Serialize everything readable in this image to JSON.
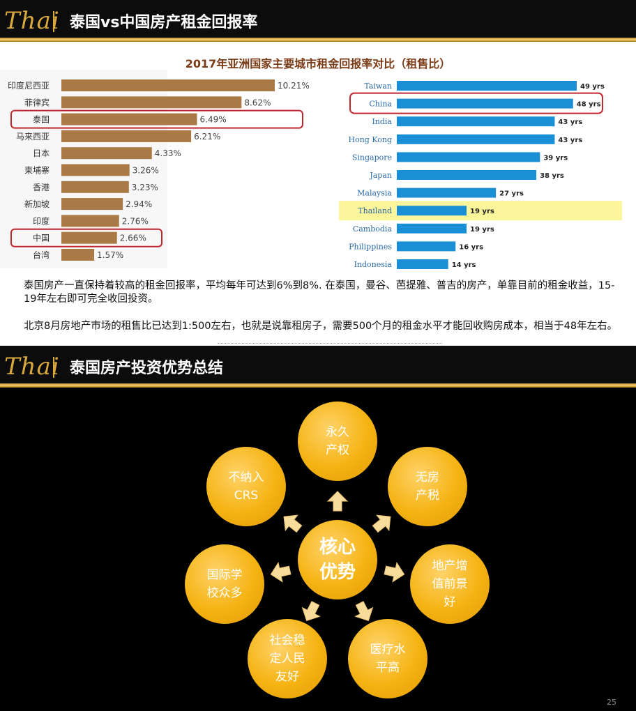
{
  "slide1": {
    "logo": "Thai",
    "header_title": "泰国vs中国房产租金回报率",
    "chart_title": "2017年亚洲国家主要城市租金回报率对比（租售比）",
    "paragraph1": "泰国房产一直保持着较高的租金回报率，平均每年可达到6%到8%. 在泰国，曼谷、芭提雅、普吉的房产，单靠目前的租金收益，15-19年左右即可完全收回投资。",
    "paragraph2": "北京8月房地产市场的租售比已达到1:500左右，也就是说靠租房子，需要500个月的租金水平才能回收购房成本，相当于48年左右。"
  },
  "chart_data": [
    {
      "type": "bar",
      "orientation": "horizontal",
      "categories": [
        "印度尼西亚",
        "菲律宾",
        "泰国",
        "马来西亚",
        "日本",
        "柬埔寨",
        "香港",
        "新加坡",
        "印度",
        "中国",
        "台湾"
      ],
      "values": [
        10.21,
        8.62,
        6.49,
        6.21,
        4.33,
        3.26,
        3.23,
        2.94,
        2.76,
        2.66,
        1.57
      ],
      "value_labels": [
        "10.21%",
        "8.62%",
        "6.49%",
        "6.21%",
        "4.33%",
        "3.26%",
        "3.23%",
        "2.94%",
        "2.76%",
        "2.66%",
        "1.57%"
      ],
      "highlighted": [
        "泰国",
        "中国"
      ],
      "bar_color": "#a97a45",
      "highlight_color": "#c0262d",
      "xlim": [
        0,
        10.21
      ]
    },
    {
      "type": "bar",
      "orientation": "horizontal",
      "categories": [
        "Taiwan",
        "China",
        "India",
        "Hong Kong",
        "Singapore",
        "Japan",
        "Malaysia",
        "Thailand",
        "Cambodia",
        "Philippines",
        "Indonesia"
      ],
      "values": [
        49,
        48,
        43,
        43,
        39,
        38,
        27,
        19,
        19,
        16,
        14
      ],
      "value_labels": [
        "49 yrs",
        "48 yrs",
        "43 yrs",
        "43 yrs",
        "39 yrs",
        "38 yrs",
        "27 yrs",
        "19 yrs",
        "19 yrs",
        "16 yrs",
        "14 yrs"
      ],
      "highlighted_box": [
        "China"
      ],
      "highlighted_fill": [
        "Thailand"
      ],
      "bar_color": "#1a8fd6",
      "label_color": "#2a6aa8",
      "highlight_color": "#c0262d",
      "highlight_fill_color": "#fbf59b",
      "xlim": [
        0,
        49
      ]
    }
  ],
  "slide2": {
    "logo": "Thai",
    "header_title": "泰国房产投资优势总结",
    "core": "核心\n优势",
    "advantages": [
      "永久\n产权",
      "无房\n产税",
      "地产增\n值前景\n好",
      "医疗水\n平高",
      "社会稳\n定人民\n友好",
      "国际学\n校众多",
      "不纳入\nCRS"
    ],
    "page_number": "25"
  }
}
